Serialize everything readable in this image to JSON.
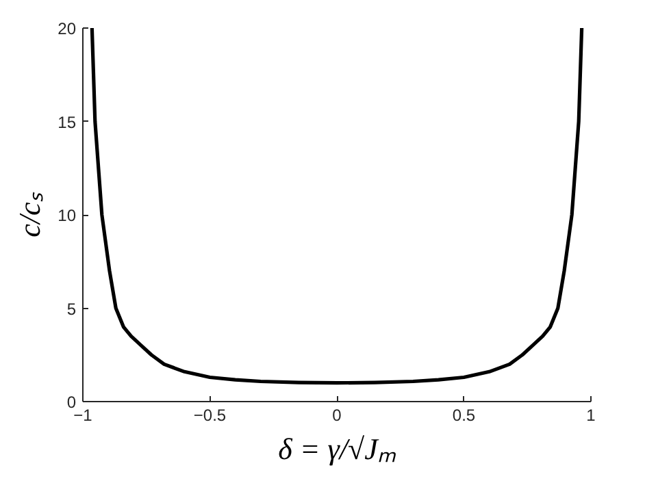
{
  "chart_data": {
    "type": "line",
    "xlabel": "δ = γ/√Jₘ",
    "ylabel": "c/cₛ",
    "x": [
      -0.964,
      -0.952,
      -0.925,
      -0.895,
      -0.87,
      -0.84,
      -0.81,
      -0.77,
      -0.73,
      -0.68,
      -0.6,
      -0.5,
      -0.4,
      -0.3,
      -0.15,
      0,
      0.15,
      0.3,
      0.4,
      0.5,
      0.6,
      0.68,
      0.73,
      0.77,
      0.81,
      0.84,
      0.87,
      0.895,
      0.925,
      0.952,
      0.964
    ],
    "series": [
      {
        "color": "#000000",
        "values": [
          20,
          15,
          10,
          7,
          5,
          4,
          3.5,
          3,
          2.5,
          2,
          1.6,
          1.3,
          1.17,
          1.08,
          1.02,
          1,
          1.02,
          1.08,
          1.17,
          1.3,
          1.6,
          2,
          2.5,
          3,
          3.5,
          4,
          5,
          7,
          10,
          15,
          20
        ]
      }
    ],
    "xlim": [
      -1,
      1
    ],
    "ylim": [
      0,
      20
    ],
    "xticks": [
      -1,
      -0.5,
      0,
      0.5,
      1
    ],
    "yticks": [
      0,
      5,
      10,
      15,
      20
    ],
    "grid": false,
    "marker": "none",
    "line_style": "solid"
  }
}
